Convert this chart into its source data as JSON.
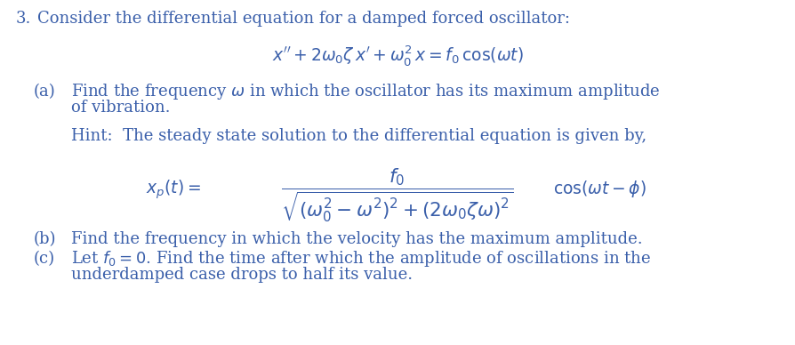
{
  "background_color": "#ffffff",
  "text_color": "#3a5faa",
  "fig_width": 8.94,
  "fig_height": 3.88,
  "dpi": 100,
  "line1_text": "Consider the differential equation for a damped forced oscillator:",
  "line1_num": "3.",
  "main_eq": "$x'' + 2\\omega_0\\zeta\\, x' + \\omega_0^2\\, x = f_0\\, \\cos(\\omega t)$",
  "part_a_label": "(a)",
  "part_a_line1": "Find the frequency $\\omega$ in which the oscillator has its maximum amplitude",
  "part_a_line2": "of vibration.",
  "hint_line": "Hint:  The steady state solution to the differential equation is given by,",
  "hint_eq_lhs": "$x_p(t) = $",
  "hint_eq_frac": "$\\dfrac{f_0}{\\sqrt{(\\omega_0^2 - \\omega^2)^2 + (2\\omega_0\\zeta\\omega)^2}}$",
  "hint_eq_rhs": "$\\cos(\\omega t - \\phi)$",
  "part_b_label": "(b)",
  "part_b_text": "Find the frequency in which the velocity has the maximum amplitude.",
  "part_c_label": "(c)",
  "part_c_line1": "Let $f_0 = 0$. Find the time after which the amplitude of oscillations in the",
  "part_c_line2": "underdamped case drops to half its value.",
  "fs_body": 13.0,
  "fs_eq": 13.5
}
